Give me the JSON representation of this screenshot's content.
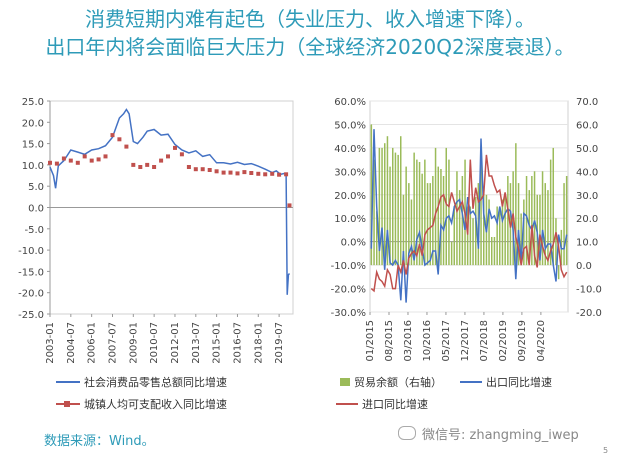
{
  "title": {
    "line1": "消费短期内难有起色（失业压力、收入增速下降）。",
    "line2": "出口年内将会面临巨大压力（全球经济2020Q2深度衰退）。"
  },
  "source_label": "数据来源：Wind。",
  "watermark": "微信号: zhangming_iwep",
  "page_number": "5",
  "chart_data": [
    {
      "type": "line",
      "x_tick_labels": [
        "2003-01",
        "2004-07",
        "2006-01",
        "2007-07",
        "2009-01",
        "2010-07",
        "2012-01",
        "2013-07",
        "2015-01",
        "2016-07",
        "2018-01",
        "2019-07"
      ],
      "y_tick_labels": [
        "25.0",
        "20.0",
        "15.0",
        "10.0",
        "5.0",
        "0.0",
        "-5.0",
        "-10.0",
        "-15.0",
        "-20.0",
        "-25.0"
      ],
      "ylim": [
        -25,
        25
      ],
      "series": [
        {
          "name": "社会消费品零售总额同比增速",
          "color": "#4472C4",
          "x": [
            2003.0,
            2003.25,
            2003.4,
            2003.6,
            2004.0,
            2004.5,
            2005.0,
            2005.5,
            2006.0,
            2006.5,
            2007.0,
            2007.5,
            2008.0,
            2008.3,
            2008.5,
            2008.7,
            2009.0,
            2009.3,
            2009.7,
            2010.0,
            2010.5,
            2011.0,
            2011.5,
            2012.0,
            2012.5,
            2013.0,
            2013.5,
            2014.0,
            2014.5,
            2015.0,
            2015.5,
            2016.0,
            2016.5,
            2017.0,
            2017.5,
            2018.0,
            2018.5,
            2019.0,
            2019.3,
            2019.6,
            2019.9,
            2020.0,
            2020.08,
            2020.17,
            2020.25
          ],
          "y": [
            9.5,
            7.5,
            4.5,
            9.8,
            11.0,
            13.5,
            13.0,
            12.5,
            13.5,
            13.8,
            14.5,
            16.5,
            21.0,
            22.0,
            23.0,
            22.0,
            15.5,
            15.0,
            16.5,
            17.9,
            18.3,
            17.0,
            17.2,
            14.8,
            13.5,
            12.8,
            13.3,
            12.0,
            12.4,
            10.5,
            10.5,
            10.2,
            10.6,
            10.1,
            10.3,
            9.7,
            9.0,
            8.2,
            8.6,
            7.8,
            8.0,
            8.0,
            -20.5,
            -15.8,
            -15.5
          ]
        },
        {
          "name": "城镇人均可支配收入同比增速",
          "color": "#C0504D",
          "x": [
            2003.0,
            2003.5,
            2004.0,
            2004.5,
            2005.0,
            2005.5,
            2006.0,
            2006.5,
            2007.0,
            2007.5,
            2008.0,
            2008.5,
            2009.0,
            2009.5,
            2010.0,
            2010.5,
            2011.0,
            2011.5,
            2012.0,
            2012.5,
            2013.0,
            2013.5,
            2014.0,
            2014.5,
            2015.0,
            2015.5,
            2016.0,
            2016.5,
            2017.0,
            2017.5,
            2018.0,
            2018.5,
            2019.0,
            2019.5,
            2020.0,
            2020.25
          ],
          "y": [
            10.5,
            10.3,
            11.5,
            11.0,
            10.5,
            12.0,
            11.0,
            11.3,
            12.0,
            17.0,
            16.0,
            14.3,
            10.0,
            9.5,
            10.0,
            9.5,
            11.0,
            12.0,
            14.0,
            12.5,
            9.5,
            9.0,
            9.0,
            8.8,
            8.5,
            8.2,
            8.2,
            8.0,
            8.3,
            8.1,
            7.9,
            7.8,
            7.9,
            7.7,
            7.8,
            0.5
          ]
        }
      ]
    },
    {
      "type": "line",
      "x_tick_labels": [
        "01/2015",
        "08/2015",
        "03/2016",
        "10/2016",
        "05/2017",
        "12/2017",
        "07/2018",
        "02/2019",
        "09/2019",
        "04/2020"
      ],
      "y_left_tick_labels": [
        "60.0%",
        "50.0%",
        "40.0%",
        "30.0%",
        "20.0%",
        "10.0%",
        "0.0%",
        "-10.0%",
        "-20.0%",
        "-30.0%"
      ],
      "y_right_tick_labels": [
        "70.0",
        "60.0",
        "50.0",
        "40.0",
        "30.0",
        "20.0",
        "10.0",
        "0.0",
        "-10.0",
        "-20.0"
      ],
      "ylim_left": [
        -30,
        60
      ],
      "ylim_right": [
        -20,
        70
      ],
      "bar_series": {
        "name": "贸易余额（右轴）",
        "color": "#9BBB59",
        "values": [
          60,
          45,
          23,
          50,
          50,
          52,
          55,
          42,
          50,
          48,
          47,
          55,
          30,
          42,
          35,
          28,
          48,
          45,
          44,
          39,
          45,
          35,
          35,
          38,
          50,
          42,
          41,
          38,
          50,
          45,
          10,
          25,
          40,
          32,
          38,
          45,
          25,
          25,
          20,
          29,
          35,
          45,
          32,
          30,
          28,
          12,
          12,
          25,
          25,
          28,
          30,
          38,
          35,
          40,
          52,
          35,
          22,
          28,
          38,
          32,
          38,
          40,
          30,
          30,
          40,
          35,
          32,
          45,
          50,
          20,
          -6,
          15,
          35,
          38
        ]
      },
      "series": [
        {
          "name": "出口同比增速",
          "color": "#4472C4",
          "values": [
            -3,
            48,
            15,
            -4,
            6,
            -12,
            5,
            -9,
            -10,
            -8,
            -10,
            -25,
            -4,
            -26,
            -5,
            -2,
            -8,
            1,
            4,
            -3,
            -10,
            -9,
            -8,
            -4,
            -4,
            -14,
            7,
            5,
            10,
            11,
            8,
            15,
            17,
            18,
            12,
            5,
            19,
            12,
            13,
            11,
            -3,
            44,
            12,
            4,
            14,
            10,
            11,
            8,
            15,
            9,
            12,
            14,
            13,
            5,
            -16,
            5,
            -9,
            12,
            11,
            7,
            5,
            9,
            4,
            -8,
            5,
            -3,
            -1,
            -1,
            -10,
            -17,
            3,
            -3,
            -3,
            3
          ]
        },
        {
          "name": "进口同比增速",
          "color": "#C0504D",
          "values": [
            -20,
            -21,
            -13,
            -16,
            -17,
            -19,
            -12,
            -14,
            -20,
            -20,
            -10,
            -13,
            -8,
            -14,
            -7,
            -5,
            -4,
            -6,
            -1,
            -6,
            3,
            5,
            6,
            7,
            12,
            15,
            19,
            20,
            16,
            15,
            21,
            17,
            13,
            15,
            17,
            12,
            3,
            35,
            14,
            23,
            17,
            18,
            20,
            37,
            28,
            28,
            24,
            21,
            22,
            15,
            21,
            14,
            6,
            12,
            2,
            -3,
            -10,
            -3,
            -2,
            -10,
            7,
            -6,
            -11,
            3,
            -2,
            -6,
            -8,
            -4,
            -1,
            4,
            -2,
            -12,
            -15,
            -13
          ]
        }
      ]
    }
  ]
}
